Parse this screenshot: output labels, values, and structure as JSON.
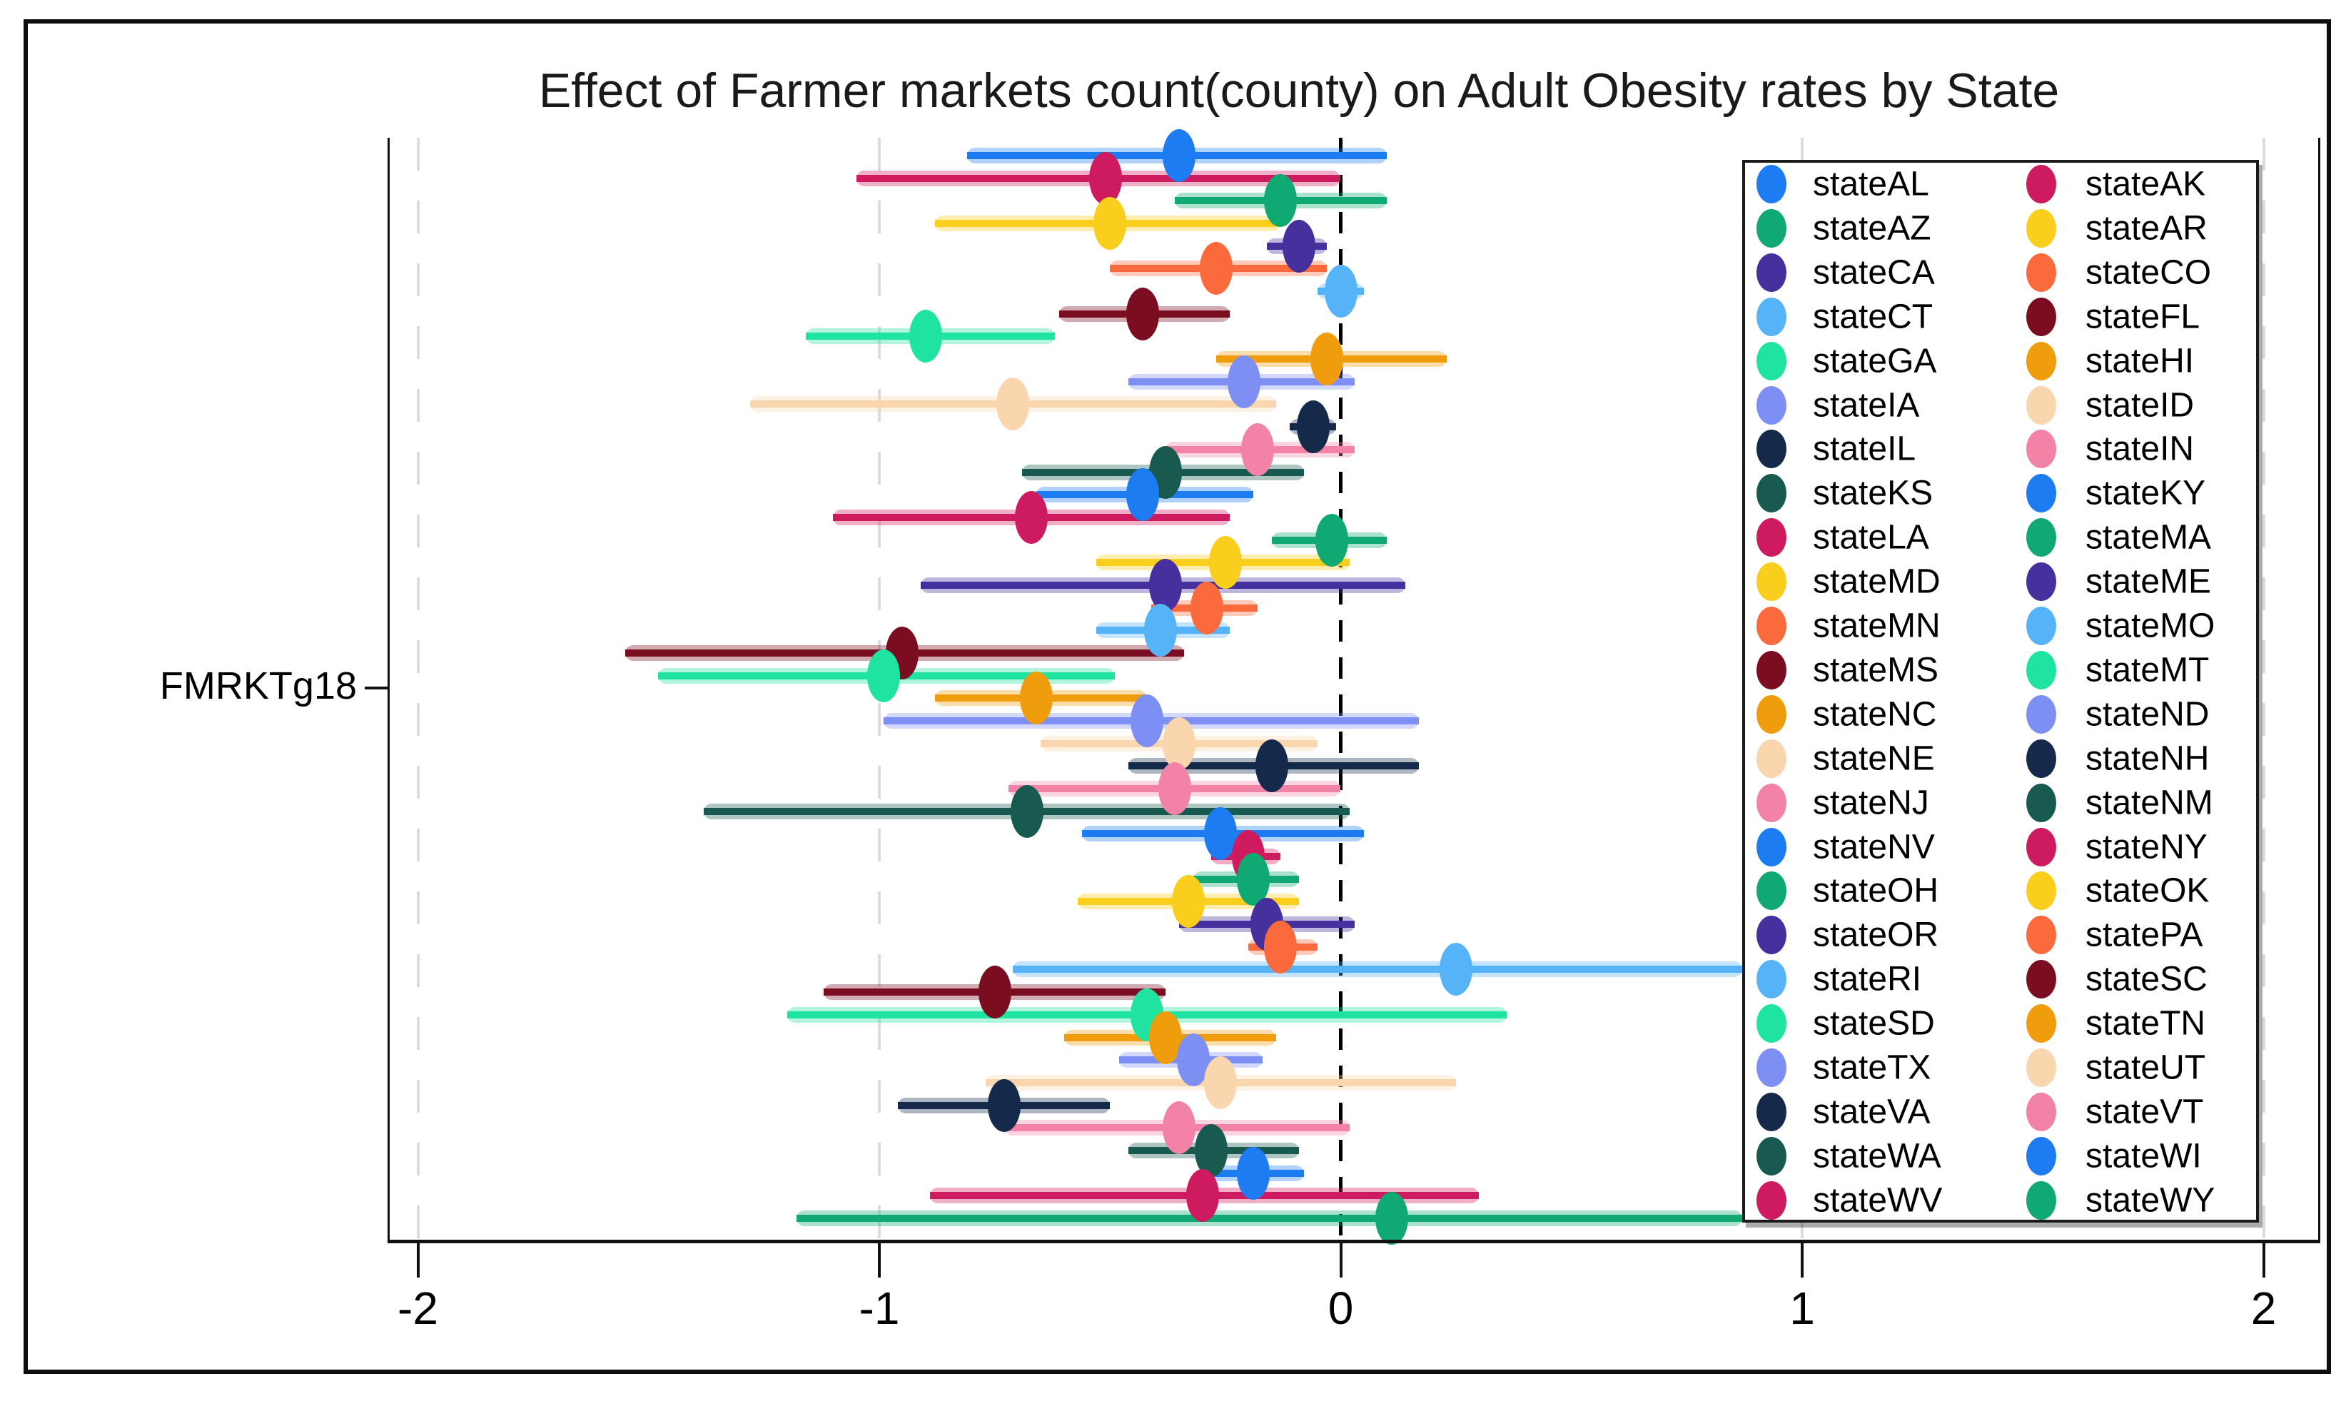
{
  "figure": {
    "title": "Effect of Farmer markets count(county) on Adult Obesity rates by State",
    "background_color": "#ffffff",
    "frame_color": "#0d0d0d"
  },
  "chart_data": {
    "type": "scatter",
    "subtype": "coefficient-plot-with-confidence-intervals",
    "title": "Effect of Farmer markets count(county) on Adult Obesity rates by State",
    "xlabel": "",
    "ylabel": "",
    "y_tick_label": "FMRKTg18",
    "xlim": [
      -2.06,
      2.12
    ],
    "x_ticks": [
      -2,
      -1,
      0,
      1,
      2
    ],
    "x_tick_labels": [
      "-2",
      "-1",
      "0",
      "1",
      "2"
    ],
    "reference_line_x": 0,
    "reference_line_style": "dashed-black",
    "gridline_xs": [
      -2,
      -1,
      1,
      2
    ],
    "grid_color": "#dcdcdc",
    "legend_position": "upper-right-inside",
    "legend_columns": 2,
    "note": "stateRI and stateWY upper CI whiskers are truncated visually at the legend's left edge (x ≈ 0.87)",
    "series": [
      {
        "name": "stateAL",
        "color": "#1E7CF2",
        "estimate": -0.35,
        "ci_low": -0.81,
        "ci_high": 0.1
      },
      {
        "name": "stateAK",
        "color": "#CE1A5E",
        "estimate": -0.51,
        "ci_low": -1.05,
        "ci_high": 0.0
      },
      {
        "name": "stateAZ",
        "color": "#10A873",
        "estimate": -0.13,
        "ci_low": -0.36,
        "ci_high": 0.1
      },
      {
        "name": "stateAR",
        "color": "#F9CE1D",
        "estimate": -0.5,
        "ci_low": -0.88,
        "ci_high": -0.13
      },
      {
        "name": "stateCA",
        "color": "#46309D",
        "estimate": -0.09,
        "ci_low": -0.16,
        "ci_high": -0.03
      },
      {
        "name": "stateCO",
        "color": "#FB6A3C",
        "estimate": -0.27,
        "ci_low": -0.5,
        "ci_high": -0.03
      },
      {
        "name": "stateCT",
        "color": "#57B3F8",
        "estimate": 0.0,
        "ci_low": -0.05,
        "ci_high": 0.05
      },
      {
        "name": "stateFL",
        "color": "#7A0D20",
        "estimate": -0.43,
        "ci_low": -0.61,
        "ci_high": -0.24
      },
      {
        "name": "stateGA",
        "color": "#1FE3A0",
        "estimate": -0.9,
        "ci_low": -1.16,
        "ci_high": -0.62
      },
      {
        "name": "stateHI",
        "color": "#F09D0D",
        "estimate": -0.03,
        "ci_low": -0.27,
        "ci_high": 0.23
      },
      {
        "name": "stateIA",
        "color": "#7E8FF3",
        "estimate": -0.21,
        "ci_low": -0.46,
        "ci_high": 0.03
      },
      {
        "name": "stateID",
        "color": "#F9D6AE",
        "estimate": -0.71,
        "ci_low": -1.28,
        "ci_high": -0.14
      },
      {
        "name": "stateIL",
        "color": "#152A4B",
        "estimate": -0.06,
        "ci_low": -0.11,
        "ci_high": -0.01
      },
      {
        "name": "stateIN",
        "color": "#F283A6",
        "estimate": -0.18,
        "ci_low": -0.38,
        "ci_high": 0.03
      },
      {
        "name": "stateKS",
        "color": "#185A50",
        "estimate": -0.38,
        "ci_low": -0.69,
        "ci_high": -0.08
      },
      {
        "name": "stateKY",
        "color": "#1E7CF2",
        "estimate": -0.43,
        "ci_low": -0.66,
        "ci_high": -0.19
      },
      {
        "name": "stateLA",
        "color": "#CE1A5E",
        "estimate": -0.67,
        "ci_low": -1.1,
        "ci_high": -0.24
      },
      {
        "name": "stateMA",
        "color": "#10A873",
        "estimate": -0.02,
        "ci_low": -0.15,
        "ci_high": 0.1
      },
      {
        "name": "stateMD",
        "color": "#F9CE1D",
        "estimate": -0.25,
        "ci_low": -0.53,
        "ci_high": 0.02
      },
      {
        "name": "stateME",
        "color": "#46309D",
        "estimate": -0.38,
        "ci_low": -0.91,
        "ci_high": 0.14
      },
      {
        "name": "stateMN",
        "color": "#FB6A3C",
        "estimate": -0.29,
        "ci_low": -0.41,
        "ci_high": -0.18
      },
      {
        "name": "stateMO",
        "color": "#57B3F8",
        "estimate": -0.39,
        "ci_low": -0.53,
        "ci_high": -0.24
      },
      {
        "name": "stateMS",
        "color": "#7A0D20",
        "estimate": -0.95,
        "ci_low": -1.55,
        "ci_high": -0.34
      },
      {
        "name": "stateMT",
        "color": "#1FE3A0",
        "estimate": -0.99,
        "ci_low": -1.48,
        "ci_high": -0.49
      },
      {
        "name": "stateNC",
        "color": "#F09D0D",
        "estimate": -0.66,
        "ci_low": -0.88,
        "ci_high": -0.42
      },
      {
        "name": "stateND",
        "color": "#7E8FF3",
        "estimate": -0.42,
        "ci_low": -0.99,
        "ci_high": 0.17
      },
      {
        "name": "stateNE",
        "color": "#F9D6AE",
        "estimate": -0.35,
        "ci_low": -0.65,
        "ci_high": -0.05
      },
      {
        "name": "stateNH",
        "color": "#152A4B",
        "estimate": -0.15,
        "ci_low": -0.46,
        "ci_high": 0.17
      },
      {
        "name": "stateNJ",
        "color": "#F283A6",
        "estimate": -0.36,
        "ci_low": -0.72,
        "ci_high": 0.0
      },
      {
        "name": "stateNM",
        "color": "#185A50",
        "estimate": -0.68,
        "ci_low": -1.38,
        "ci_high": 0.02
      },
      {
        "name": "stateNV",
        "color": "#1E7CF2",
        "estimate": -0.26,
        "ci_low": -0.56,
        "ci_high": 0.05
      },
      {
        "name": "stateNY",
        "color": "#CE1A5E",
        "estimate": -0.2,
        "ci_low": -0.28,
        "ci_high": -0.13
      },
      {
        "name": "stateOH",
        "color": "#10A873",
        "estimate": -0.19,
        "ci_low": -0.32,
        "ci_high": -0.09
      },
      {
        "name": "stateOK",
        "color": "#F9CE1D",
        "estimate": -0.33,
        "ci_low": -0.57,
        "ci_high": -0.09
      },
      {
        "name": "stateOR",
        "color": "#46309D",
        "estimate": -0.16,
        "ci_low": -0.35,
        "ci_high": 0.03
      },
      {
        "name": "statePA",
        "color": "#FB6A3C",
        "estimate": -0.13,
        "ci_low": -0.2,
        "ci_high": -0.05
      },
      {
        "name": "stateRI",
        "color": "#57B3F8",
        "estimate": 0.25,
        "ci_low": -0.71,
        "ci_high": 0.87
      },
      {
        "name": "stateSC",
        "color": "#7A0D20",
        "estimate": -0.75,
        "ci_low": -1.12,
        "ci_high": -0.38
      },
      {
        "name": "stateSD",
        "color": "#1FE3A0",
        "estimate": -0.42,
        "ci_low": -1.2,
        "ci_high": 0.36
      },
      {
        "name": "stateTN",
        "color": "#F09D0D",
        "estimate": -0.38,
        "ci_low": -0.6,
        "ci_high": -0.14
      },
      {
        "name": "stateTX",
        "color": "#7E8FF3",
        "estimate": -0.32,
        "ci_low": -0.48,
        "ci_high": -0.17
      },
      {
        "name": "stateUT",
        "color": "#F9D6AE",
        "estimate": -0.26,
        "ci_low": -0.77,
        "ci_high": 0.25
      },
      {
        "name": "stateVA",
        "color": "#152A4B",
        "estimate": -0.73,
        "ci_low": -0.96,
        "ci_high": -0.5
      },
      {
        "name": "stateVT",
        "color": "#F283A6",
        "estimate": -0.35,
        "ci_low": -0.73,
        "ci_high": 0.02
      },
      {
        "name": "stateWA",
        "color": "#185A50",
        "estimate": -0.28,
        "ci_low": -0.46,
        "ci_high": -0.09
      },
      {
        "name": "stateWI",
        "color": "#1E7CF2",
        "estimate": -0.19,
        "ci_low": -0.3,
        "ci_high": -0.08
      },
      {
        "name": "stateWV",
        "color": "#CE1A5E",
        "estimate": -0.3,
        "ci_low": -0.89,
        "ci_high": 0.3
      },
      {
        "name": "stateWY",
        "color": "#10A873",
        "estimate": 0.11,
        "ci_low": -1.18,
        "ci_high": 0.87
      }
    ]
  }
}
